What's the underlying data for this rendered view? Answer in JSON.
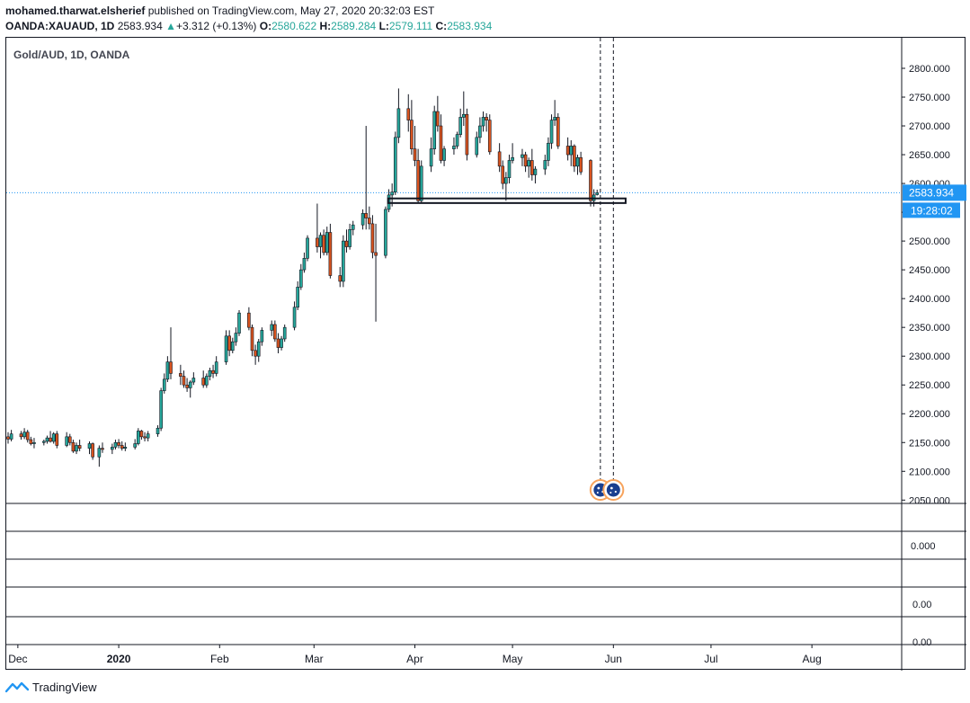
{
  "header": {
    "author": "mohamed.tharwat.elsherief",
    "published_text": "published on TradingView.com, May 27, 2020 20:32:03 EST",
    "symbol": "OANDA:XAUAUD, 1D",
    "last": "2583.934",
    "change": "+3.312 (+0.13%)",
    "o_label": "O:",
    "o": "2580.622",
    "h_label": "H:",
    "h": "2589.284",
    "l_label": "L:",
    "l": "2579.111",
    "c_label": "C:",
    "c": "2583.934"
  },
  "footer": {
    "brand": "TradingView"
  },
  "colors": {
    "up": "#26a69a",
    "down": "#d9541f",
    "bull_fill": "#26a69a",
    "bear_fill": "#d9541f",
    "price_label_bg": "#2196f3",
    "price_line": "#2196f3",
    "event_icon": "#f7a35c"
  },
  "chart_data": {
    "type": "candlestick",
    "title": "Gold/AUD, 1D, OANDA",
    "y_ticks": [
      "2800.000",
      "2750.000",
      "2700.000",
      "2650.000",
      "2600.000",
      "2550.000",
      "2500.000",
      "2450.000",
      "2400.000",
      "2350.000",
      "2300.000",
      "2250.000",
      "2200.000",
      "2150.000",
      "2100.000",
      "2050.000"
    ],
    "ylim": [
      2042,
      2848
    ],
    "x_ticks": [
      "Dec",
      "2020",
      "Feb",
      "Mar",
      "Apr",
      "May",
      "Jun",
      "Jul",
      "Aug"
    ],
    "price_label": "2583.934",
    "countdown_label": "19:28:02",
    "support_zone": {
      "from_date": "2020-03-26",
      "to_date": "2020-06-02",
      "low": 2566,
      "high": 2574
    },
    "event_markers": [
      "2020-05-28",
      "2020-06-01"
    ],
    "sub_panes": [
      {
        "ticks": [
          "0.000"
        ]
      },
      {
        "ticks": [
          "0.00",
          "0.00"
        ]
      }
    ],
    "candles": [
      {
        "d": "2019-11-28",
        "o": 2160,
        "h": 2168,
        "l": 2148,
        "c": 2156
      },
      {
        "d": "2019-11-29",
        "o": 2156,
        "h": 2172,
        "l": 2152,
        "c": 2165
      },
      {
        "d": "2019-12-02",
        "o": 2165,
        "h": 2170,
        "l": 2155,
        "c": 2160
      },
      {
        "d": "2019-12-03",
        "o": 2160,
        "h": 2175,
        "l": 2156,
        "c": 2168
      },
      {
        "d": "2019-12-04",
        "o": 2168,
        "h": 2172,
        "l": 2150,
        "c": 2155
      },
      {
        "d": "2019-12-05",
        "o": 2155,
        "h": 2160,
        "l": 2145,
        "c": 2148
      },
      {
        "d": "2019-12-06",
        "o": 2148,
        "h": 2158,
        "l": 2140,
        "c": 2150
      },
      {
        "d": "2019-12-09",
        "o": 2150,
        "h": 2155,
        "l": 2145,
        "c": 2152
      },
      {
        "d": "2019-12-10",
        "o": 2152,
        "h": 2162,
        "l": 2148,
        "c": 2158
      },
      {
        "d": "2019-12-11",
        "o": 2158,
        "h": 2170,
        "l": 2150,
        "c": 2152
      },
      {
        "d": "2019-12-12",
        "o": 2152,
        "h": 2168,
        "l": 2148,
        "c": 2165
      },
      {
        "d": "2019-12-13",
        "o": 2165,
        "h": 2170,
        "l": 2140,
        "c": 2145
      },
      {
        "d": "2019-12-16",
        "o": 2145,
        "h": 2168,
        "l": 2142,
        "c": 2160
      },
      {
        "d": "2019-12-17",
        "o": 2160,
        "h": 2165,
        "l": 2145,
        "c": 2150
      },
      {
        "d": "2019-12-18",
        "o": 2150,
        "h": 2155,
        "l": 2132,
        "c": 2135
      },
      {
        "d": "2019-12-19",
        "o": 2135,
        "h": 2150,
        "l": 2130,
        "c": 2145
      },
      {
        "d": "2019-12-20",
        "o": 2145,
        "h": 2155,
        "l": 2135,
        "c": 2140
      },
      {
        "d": "2019-12-23",
        "o": 2140,
        "h": 2152,
        "l": 2130,
        "c": 2148
      },
      {
        "d": "2019-12-24",
        "o": 2148,
        "h": 2150,
        "l": 2120,
        "c": 2125
      },
      {
        "d": "2019-12-26",
        "o": 2125,
        "h": 2145,
        "l": 2108,
        "c": 2140
      },
      {
        "d": "2019-12-27",
        "o": 2140,
        "h": 2150,
        "l": 2132,
        "c": 2138
      },
      {
        "d": "2019-12-30",
        "o": 2138,
        "h": 2148,
        "l": 2130,
        "c": 2142
      },
      {
        "d": "2019-12-31",
        "o": 2142,
        "h": 2155,
        "l": 2138,
        "c": 2150
      },
      {
        "d": "2020-01-01",
        "o": 2150,
        "h": 2156,
        "l": 2140,
        "c": 2145
      },
      {
        "d": "2020-01-02",
        "o": 2145,
        "h": 2152,
        "l": 2136,
        "c": 2140
      },
      {
        "d": "2020-01-03",
        "o": 2140,
        "h": 2150,
        "l": 2135,
        "c": 2142
      },
      {
        "d": "2020-01-06",
        "o": 2142,
        "h": 2156,
        "l": 2138,
        "c": 2148
      },
      {
        "d": "2020-01-07",
        "o": 2148,
        "h": 2175,
        "l": 2145,
        "c": 2170
      },
      {
        "d": "2020-01-08",
        "o": 2170,
        "h": 2172,
        "l": 2155,
        "c": 2160
      },
      {
        "d": "2020-01-09",
        "o": 2160,
        "h": 2168,
        "l": 2152,
        "c": 2158
      },
      {
        "d": "2020-01-10",
        "o": 2158,
        "h": 2170,
        "l": 2152,
        "c": 2165
      },
      {
        "d": "2020-01-13",
        "o": 2165,
        "h": 2180,
        "l": 2160,
        "c": 2175
      },
      {
        "d": "2020-01-14",
        "o": 2175,
        "h": 2245,
        "l": 2170,
        "c": 2240
      },
      {
        "d": "2020-01-15",
        "o": 2240,
        "h": 2270,
        "l": 2235,
        "c": 2260
      },
      {
        "d": "2020-01-16",
        "o": 2260,
        "h": 2300,
        "l": 2255,
        "c": 2290
      },
      {
        "d": "2020-01-17",
        "o": 2290,
        "h": 2350,
        "l": 2260,
        "c": 2270
      },
      {
        "d": "2020-01-20",
        "o": 2270,
        "h": 2285,
        "l": 2250,
        "c": 2265
      },
      {
        "d": "2020-01-21",
        "o": 2265,
        "h": 2275,
        "l": 2245,
        "c": 2250
      },
      {
        "d": "2020-01-22",
        "o": 2250,
        "h": 2262,
        "l": 2238,
        "c": 2245
      },
      {
        "d": "2020-01-23",
        "o": 2245,
        "h": 2258,
        "l": 2228,
        "c": 2255
      },
      {
        "d": "2020-01-24",
        "o": 2255,
        "h": 2272,
        "l": 2250,
        "c": 2262
      },
      {
        "d": "2020-01-27",
        "o": 2262,
        "h": 2275,
        "l": 2245,
        "c": 2250
      },
      {
        "d": "2020-01-28",
        "o": 2250,
        "h": 2270,
        "l": 2245,
        "c": 2265
      },
      {
        "d": "2020-01-29",
        "o": 2265,
        "h": 2280,
        "l": 2258,
        "c": 2275
      },
      {
        "d": "2020-01-30",
        "o": 2275,
        "h": 2285,
        "l": 2262,
        "c": 2270
      },
      {
        "d": "2020-01-31",
        "o": 2270,
        "h": 2300,
        "l": 2265,
        "c": 2290
      },
      {
        "d": "2020-02-03",
        "o": 2290,
        "h": 2345,
        "l": 2285,
        "c": 2335
      },
      {
        "d": "2020-02-04",
        "o": 2335,
        "h": 2345,
        "l": 2300,
        "c": 2310
      },
      {
        "d": "2020-02-05",
        "o": 2310,
        "h": 2332,
        "l": 2305,
        "c": 2325
      },
      {
        "d": "2020-02-06",
        "o": 2325,
        "h": 2350,
        "l": 2318,
        "c": 2340
      },
      {
        "d": "2020-02-07",
        "o": 2340,
        "h": 2380,
        "l": 2335,
        "c": 2375
      },
      {
        "d": "2020-02-10",
        "o": 2375,
        "h": 2385,
        "l": 2345,
        "c": 2350
      },
      {
        "d": "2020-02-11",
        "o": 2350,
        "h": 2355,
        "l": 2300,
        "c": 2310
      },
      {
        "d": "2020-02-12",
        "o": 2310,
        "h": 2320,
        "l": 2285,
        "c": 2300
      },
      {
        "d": "2020-02-13",
        "o": 2300,
        "h": 2330,
        "l": 2290,
        "c": 2325
      },
      {
        "d": "2020-02-14",
        "o": 2325,
        "h": 2350,
        "l": 2318,
        "c": 2345
      },
      {
        "d": "2020-02-17",
        "o": 2345,
        "h": 2362,
        "l": 2335,
        "c": 2355
      },
      {
        "d": "2020-02-18",
        "o": 2355,
        "h": 2362,
        "l": 2325,
        "c": 2330
      },
      {
        "d": "2020-02-19",
        "o": 2330,
        "h": 2340,
        "l": 2305,
        "c": 2315
      },
      {
        "d": "2020-02-20",
        "o": 2315,
        "h": 2335,
        "l": 2310,
        "c": 2330
      },
      {
        "d": "2020-02-21",
        "o": 2330,
        "h": 2355,
        "l": 2325,
        "c": 2350
      },
      {
        "d": "2020-02-24",
        "o": 2350,
        "h": 2395,
        "l": 2345,
        "c": 2385
      },
      {
        "d": "2020-02-25",
        "o": 2385,
        "h": 2430,
        "l": 2380,
        "c": 2420
      },
      {
        "d": "2020-02-26",
        "o": 2420,
        "h": 2460,
        "l": 2415,
        "c": 2450
      },
      {
        "d": "2020-02-27",
        "o": 2450,
        "h": 2480,
        "l": 2445,
        "c": 2470
      },
      {
        "d": "2020-02-28",
        "o": 2470,
        "h": 2510,
        "l": 2465,
        "c": 2505
      },
      {
        "d": "2020-03-02",
        "o": 2505,
        "h": 2565,
        "l": 2480,
        "c": 2490
      },
      {
        "d": "2020-03-03",
        "o": 2490,
        "h": 2515,
        "l": 2470,
        "c": 2510
      },
      {
        "d": "2020-03-04",
        "o": 2510,
        "h": 2520,
        "l": 2475,
        "c": 2480
      },
      {
        "d": "2020-03-05",
        "o": 2480,
        "h": 2525,
        "l": 2475,
        "c": 2515
      },
      {
        "d": "2020-03-06",
        "o": 2515,
        "h": 2530,
        "l": 2435,
        "c": 2440
      },
      {
        "d": "2020-03-09",
        "o": 2440,
        "h": 2455,
        "l": 2420,
        "c": 2430
      },
      {
        "d": "2020-03-10",
        "o": 2430,
        "h": 2510,
        "l": 2420,
        "c": 2500
      },
      {
        "d": "2020-03-11",
        "o": 2500,
        "h": 2520,
        "l": 2480,
        "c": 2490
      },
      {
        "d": "2020-03-12",
        "o": 2490,
        "h": 2530,
        "l": 2485,
        "c": 2520
      },
      {
        "d": "2020-03-13",
        "o": 2520,
        "h": 2535,
        "l": 2510,
        "c": 2528
      },
      {
        "d": "2020-03-16",
        "o": 2528,
        "h": 2555,
        "l": 2520,
        "c": 2548
      },
      {
        "d": "2020-03-17",
        "o": 2548,
        "h": 2700,
        "l": 2520,
        "c": 2540
      },
      {
        "d": "2020-03-18",
        "o": 2540,
        "h": 2560,
        "l": 2520,
        "c": 2530
      },
      {
        "d": "2020-03-19",
        "o": 2530,
        "h": 2545,
        "l": 2470,
        "c": 2480
      },
      {
        "d": "2020-03-20",
        "o": 2480,
        "h": 2530,
        "l": 2360,
        "c": 2475
      },
      {
        "d": "2020-03-23",
        "o": 2475,
        "h": 2560,
        "l": 2470,
        "c": 2555
      },
      {
        "d": "2020-03-24",
        "o": 2555,
        "h": 2590,
        "l": 2550,
        "c": 2580
      },
      {
        "d": "2020-03-25",
        "o": 2580,
        "h": 2600,
        "l": 2560,
        "c": 2585
      },
      {
        "d": "2020-03-26",
        "o": 2585,
        "h": 2690,
        "l": 2580,
        "c": 2680
      },
      {
        "d": "2020-03-27",
        "o": 2680,
        "h": 2765,
        "l": 2670,
        "c": 2730
      },
      {
        "d": "2020-03-30",
        "o": 2730,
        "h": 2755,
        "l": 2690,
        "c": 2710
      },
      {
        "d": "2020-03-31",
        "o": 2710,
        "h": 2745,
        "l": 2650,
        "c": 2660
      },
      {
        "d": "2020-04-01",
        "o": 2660,
        "h": 2700,
        "l": 2630,
        "c": 2640
      },
      {
        "d": "2020-04-02",
        "o": 2640,
        "h": 2660,
        "l": 2565,
        "c": 2570
      },
      {
        "d": "2020-04-03",
        "o": 2570,
        "h": 2640,
        "l": 2565,
        "c": 2630
      },
      {
        "d": "2020-04-06",
        "o": 2630,
        "h": 2680,
        "l": 2620,
        "c": 2660
      },
      {
        "d": "2020-04-07",
        "o": 2660,
        "h": 2735,
        "l": 2650,
        "c": 2725
      },
      {
        "d": "2020-04-08",
        "o": 2725,
        "h": 2752,
        "l": 2690,
        "c": 2700
      },
      {
        "d": "2020-04-09",
        "o": 2700,
        "h": 2720,
        "l": 2635,
        "c": 2640
      },
      {
        "d": "2020-04-10",
        "o": 2640,
        "h": 2665,
        "l": 2630,
        "c": 2660
      },
      {
        "d": "2020-04-13",
        "o": 2660,
        "h": 2680,
        "l": 2650,
        "c": 2665
      },
      {
        "d": "2020-04-14",
        "o": 2665,
        "h": 2690,
        "l": 2660,
        "c": 2685
      },
      {
        "d": "2020-04-15",
        "o": 2685,
        "h": 2730,
        "l": 2680,
        "c": 2715
      },
      {
        "d": "2020-04-16",
        "o": 2715,
        "h": 2760,
        "l": 2700,
        "c": 2720
      },
      {
        "d": "2020-04-17",
        "o": 2720,
        "h": 2730,
        "l": 2640,
        "c": 2650
      },
      {
        "d": "2020-04-20",
        "o": 2650,
        "h": 2690,
        "l": 2645,
        "c": 2680
      },
      {
        "d": "2020-04-21",
        "o": 2680,
        "h": 2715,
        "l": 2670,
        "c": 2700
      },
      {
        "d": "2020-04-22",
        "o": 2700,
        "h": 2725,
        "l": 2690,
        "c": 2715
      },
      {
        "d": "2020-04-23",
        "o": 2715,
        "h": 2722,
        "l": 2690,
        "c": 2710
      },
      {
        "d": "2020-04-24",
        "o": 2710,
        "h": 2720,
        "l": 2650,
        "c": 2655
      },
      {
        "d": "2020-04-27",
        "o": 2655,
        "h": 2670,
        "l": 2620,
        "c": 2630
      },
      {
        "d": "2020-04-28",
        "o": 2630,
        "h": 2640,
        "l": 2590,
        "c": 2600
      },
      {
        "d": "2020-04-29",
        "o": 2600,
        "h": 2620,
        "l": 2570,
        "c": 2610
      },
      {
        "d": "2020-04-30",
        "o": 2610,
        "h": 2650,
        "l": 2600,
        "c": 2640
      },
      {
        "d": "2020-05-01",
        "o": 2640,
        "h": 2670,
        "l": 2635,
        "c": 2645
      },
      {
        "d": "2020-05-04",
        "o": 2645,
        "h": 2660,
        "l": 2630,
        "c": 2650
      },
      {
        "d": "2020-05-05",
        "o": 2650,
        "h": 2655,
        "l": 2620,
        "c": 2630
      },
      {
        "d": "2020-05-06",
        "o": 2630,
        "h": 2645,
        "l": 2610,
        "c": 2640
      },
      {
        "d": "2020-05-07",
        "o": 2640,
        "h": 2660,
        "l": 2605,
        "c": 2615
      },
      {
        "d": "2020-05-08",
        "o": 2615,
        "h": 2630,
        "l": 2600,
        "c": 2625
      },
      {
        "d": "2020-05-11",
        "o": 2625,
        "h": 2650,
        "l": 2615,
        "c": 2640
      },
      {
        "d": "2020-05-12",
        "o": 2640,
        "h": 2680,
        "l": 2630,
        "c": 2670
      },
      {
        "d": "2020-05-13",
        "o": 2670,
        "h": 2720,
        "l": 2660,
        "c": 2710
      },
      {
        "d": "2020-05-14",
        "o": 2710,
        "h": 2745,
        "l": 2700,
        "c": 2715
      },
      {
        "d": "2020-05-15",
        "o": 2715,
        "h": 2722,
        "l": 2660,
        "c": 2665
      },
      {
        "d": "2020-05-18",
        "o": 2665,
        "h": 2680,
        "l": 2640,
        "c": 2650
      },
      {
        "d": "2020-05-19",
        "o": 2650,
        "h": 2675,
        "l": 2630,
        "c": 2665
      },
      {
        "d": "2020-05-20",
        "o": 2665,
        "h": 2668,
        "l": 2620,
        "c": 2630
      },
      {
        "d": "2020-05-21",
        "o": 2630,
        "h": 2650,
        "l": 2615,
        "c": 2645
      },
      {
        "d": "2020-05-22",
        "o": 2645,
        "h": 2655,
        "l": 2615,
        "c": 2620
      },
      {
        "d": "2020-05-25",
        "o": 2640,
        "h": 2642,
        "l": 2560,
        "c": 2570
      },
      {
        "d": "2020-05-26",
        "o": 2570,
        "h": 2590,
        "l": 2560,
        "c": 2580
      },
      {
        "d": "2020-05-27",
        "o": 2580.622,
        "h": 2589.284,
        "l": 2579.111,
        "c": 2583.934
      }
    ]
  }
}
